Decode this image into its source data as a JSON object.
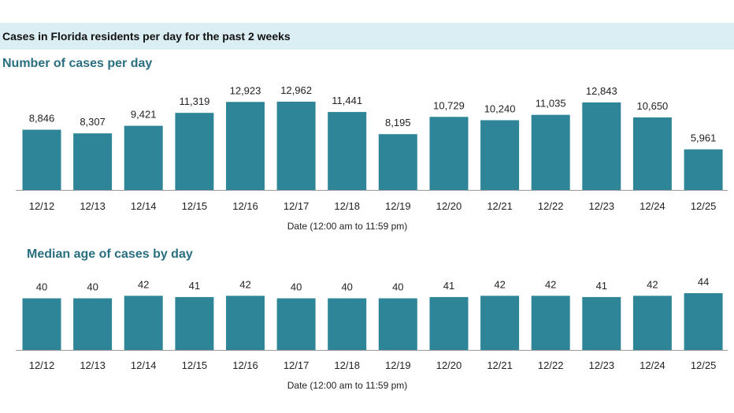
{
  "header": {
    "title": "Cases in Florida residents per day for the past 2 weeks"
  },
  "colors": {
    "bar": "#2e8597",
    "axis": "#9a9a9a",
    "header_band": "#dbeef4",
    "title": "#2a6f80"
  },
  "chart_data": [
    {
      "type": "bar",
      "title": "Number of cases per day",
      "xlabel": "Date (12:00 am to 11:59 pm)",
      "ylabel": "",
      "categories": [
        "12/12",
        "12/13",
        "12/14",
        "12/15",
        "12/16",
        "12/17",
        "12/18",
        "12/19",
        "12/20",
        "12/21",
        "12/22",
        "12/23",
        "12/24",
        "12/25"
      ],
      "values": [
        8846,
        8307,
        9421,
        11319,
        12923,
        12962,
        11441,
        8195,
        10729,
        10240,
        11035,
        12843,
        10650,
        5961
      ],
      "labels": [
        "8,846",
        "8,307",
        "9,421",
        "11,319",
        "12,923",
        "12,962",
        "11,441",
        "8,195",
        "10,729",
        "10,240",
        "11,035",
        "12,843",
        "10,650",
        "5,961"
      ],
      "ylim": [
        0,
        12962
      ]
    },
    {
      "type": "bar",
      "title": "Median age of cases by day",
      "xlabel": "Date (12:00 am to 11:59 pm)",
      "ylabel": "",
      "categories": [
        "12/12",
        "12/13",
        "12/14",
        "12/15",
        "12/16",
        "12/17",
        "12/18",
        "12/19",
        "12/20",
        "12/21",
        "12/22",
        "12/23",
        "12/24",
        "12/25"
      ],
      "values": [
        40,
        40,
        42,
        41,
        42,
        40,
        40,
        40,
        41,
        42,
        42,
        41,
        42,
        44
      ],
      "labels": [
        "40",
        "40",
        "42",
        "41",
        "42",
        "40",
        "40",
        "40",
        "41",
        "42",
        "42",
        "41",
        "42",
        "44"
      ],
      "ylim": [
        0,
        44
      ]
    }
  ]
}
